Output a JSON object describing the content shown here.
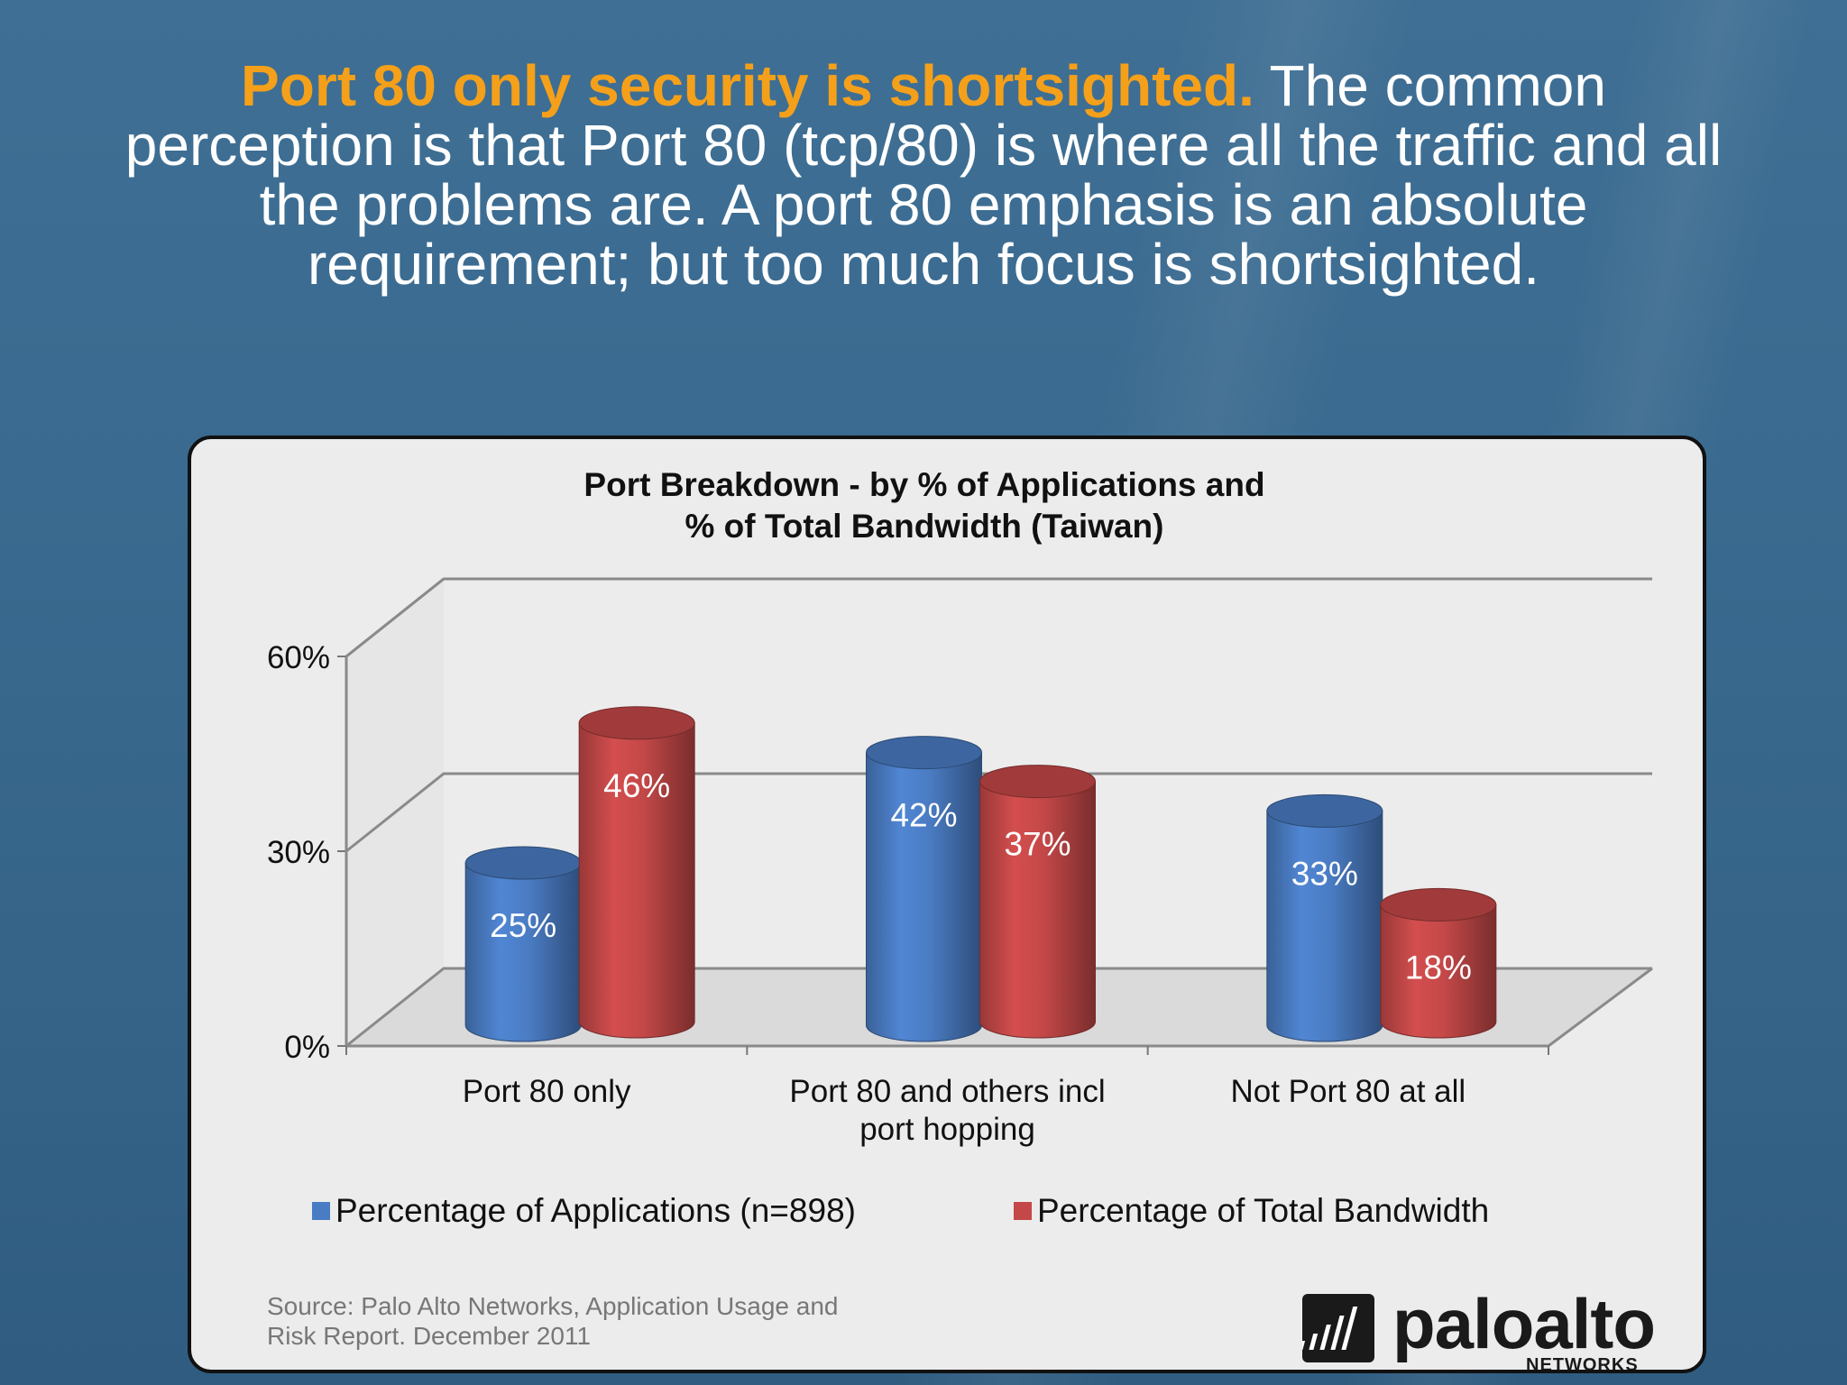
{
  "headline": {
    "accent": "Port 80 only security is shortsighted.",
    "line1_rest": "The common",
    "line2": "perception is that Port 80 (tcp/80) is where all the traffic and all",
    "line3": "the problems are. A port 80 emphasis is an absolute",
    "line4": "requirement; but too much focus is shortsighted."
  },
  "chart_data": {
    "type": "bar",
    "title_line1": "Port Breakdown - by % of Applications and",
    "title_line2": "% of Total Bandwidth (Taiwan)",
    "categories": [
      "Port 80 only",
      "Port 80 and others incl port hopping",
      "Not Port 80 at all"
    ],
    "category_lines": [
      [
        "Port 80 only"
      ],
      [
        "Port 80 and others incl",
        "port hopping"
      ],
      [
        "Not Port 80 at all"
      ]
    ],
    "series": [
      {
        "name": "Percentage of Applications (n=898)",
        "values": [
          25,
          42,
          33
        ],
        "labels": [
          "25%",
          "42%",
          "33%"
        ],
        "color": "#4a7cc3"
      },
      {
        "name": "Percentage of Total Bandwidth",
        "values": [
          46,
          37,
          18
        ],
        "labels": [
          "46%",
          "37%",
          "18%"
        ],
        "color": "#c44848"
      }
    ],
    "ylim": [
      0,
      60
    ],
    "yticks": [
      0,
      30,
      60
    ],
    "ytick_labels": [
      "0%",
      "30%",
      "60%"
    ],
    "grid": true,
    "legend_position": "bottom",
    "style": "3d-cylinder"
  },
  "source": {
    "line1": "Source: Palo Alto Networks, Application Usage and",
    "line2": "Risk Report. December 2011"
  },
  "logo": {
    "wordmark": "paloalto",
    "subtitle": "NETWORKS"
  }
}
